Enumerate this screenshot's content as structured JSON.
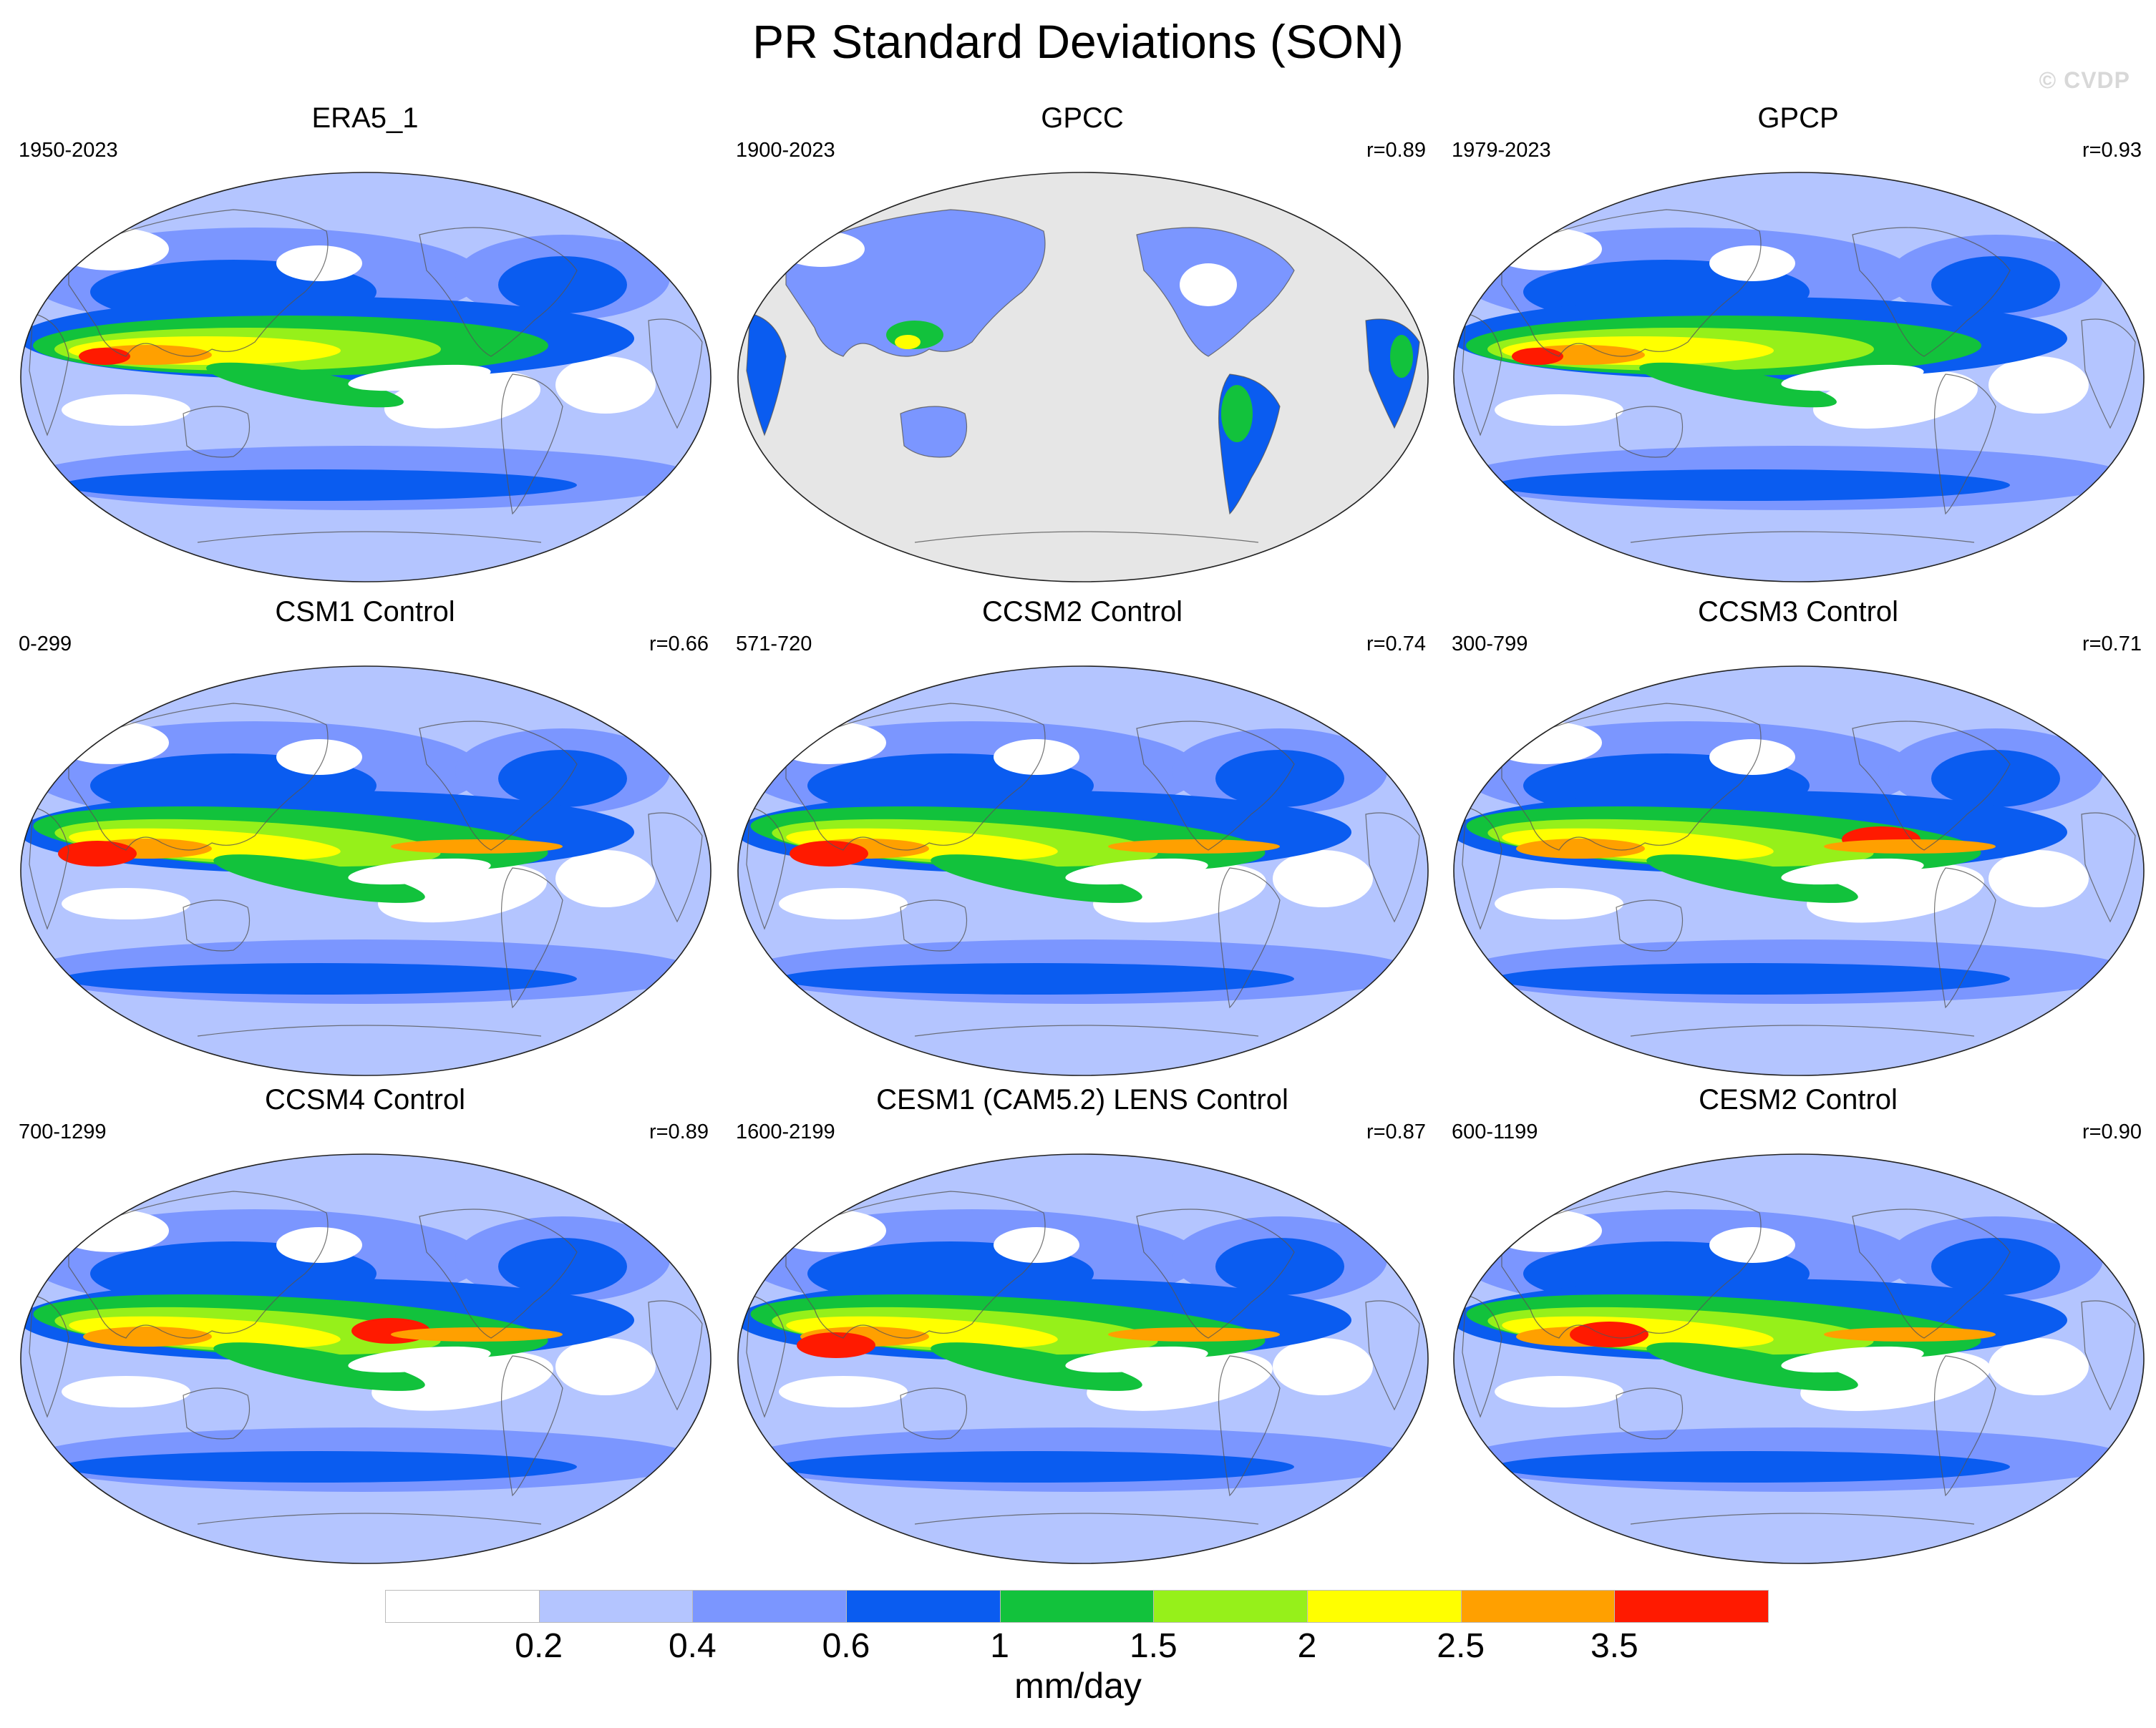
{
  "title": "PR Standard Deviations (SON)",
  "watermark": "© CVDP",
  "colorbar": {
    "units": "mm/day",
    "levels": [
      "0.2",
      "0.4",
      "0.6",
      "1",
      "1.5",
      "2",
      "2.5",
      "3.5"
    ],
    "colors": [
      "#ffffff",
      "#b4c5ff",
      "#7b96ff",
      "#0a5cf0",
      "#12c23c",
      "#96f01a",
      "#ffff00",
      "#ffa000",
      "#ff1a00"
    ]
  },
  "land_mask_color": "#e6e6e6",
  "panels": [
    {
      "title": "ERA5_1",
      "years": "1950-2023",
      "r": "",
      "pattern": "obs"
    },
    {
      "title": "GPCC",
      "years": "1900-2023",
      "r": "r=0.89",
      "pattern": "land"
    },
    {
      "title": "GPCP",
      "years": "1979-2023",
      "r": "r=0.93",
      "pattern": "obs"
    },
    {
      "title": "CSM1 Control",
      "years": "0-299",
      "r": "r=0.66",
      "pattern": "model"
    },
    {
      "title": "CCSM2 Control",
      "years": "571-720",
      "r": "r=0.74",
      "pattern": "model"
    },
    {
      "title": "CCSM3 Control",
      "years": "300-799",
      "r": "r=0.71",
      "pattern": "model"
    },
    {
      "title": "CCSM4 Control",
      "years": "700-1299",
      "r": "r=0.89",
      "pattern": "model"
    },
    {
      "title": "CESM1 (CAM5.2) LENS Control",
      "years": "1600-2199",
      "r": "r=0.87",
      "pattern": "model"
    },
    {
      "title": "CESM2 Control",
      "years": "600-1199",
      "r": "r=0.90",
      "pattern": "model"
    }
  ]
}
